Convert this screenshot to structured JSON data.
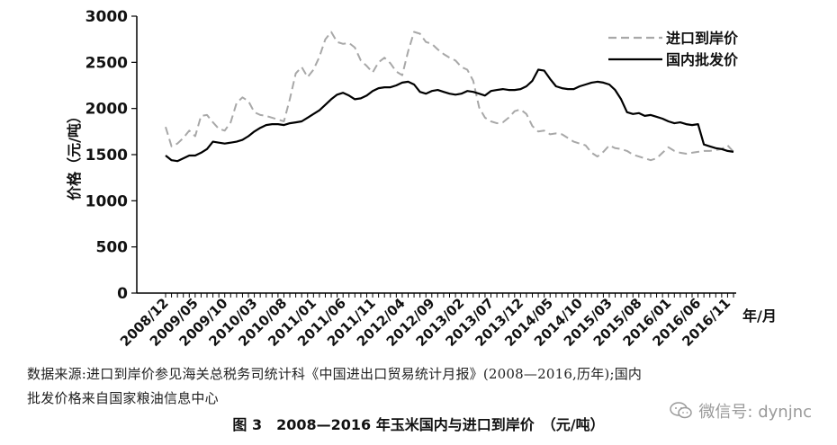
{
  "chart_data": {
    "type": "line",
    "x": [
      "2008/12",
      "2009/01",
      "2009/02",
      "2009/03",
      "2009/04",
      "2009/05",
      "2009/06",
      "2009/07",
      "2009/08",
      "2009/09",
      "2009/10",
      "2009/11",
      "2009/12",
      "2010/01",
      "2010/02",
      "2010/03",
      "2010/04",
      "2010/05",
      "2010/06",
      "2010/07",
      "2010/08",
      "2010/09",
      "2010/10",
      "2010/11",
      "2010/12",
      "2011/01",
      "2011/02",
      "2011/03",
      "2011/04",
      "2011/05",
      "2011/06",
      "2011/07",
      "2011/08",
      "2011/09",
      "2011/10",
      "2011/11",
      "2011/12",
      "2012/01",
      "2012/02",
      "2012/03",
      "2012/04",
      "2012/05",
      "2012/06",
      "2012/07",
      "2012/08",
      "2012/09",
      "2012/10",
      "2012/11",
      "2012/12",
      "2013/01",
      "2013/02",
      "2013/03",
      "2013/04",
      "2013/05",
      "2013/06",
      "2013/07",
      "2013/08",
      "2013/09",
      "2013/10",
      "2013/11",
      "2013/12",
      "2014/01",
      "2014/02",
      "2014/03",
      "2014/04",
      "2014/05",
      "2014/06",
      "2014/07",
      "2014/08",
      "2014/09",
      "2014/10",
      "2014/11",
      "2014/12",
      "2015/01",
      "2015/02",
      "2015/03",
      "2015/04",
      "2015/05",
      "2015/06",
      "2015/07",
      "2015/08",
      "2015/09",
      "2015/10",
      "2015/11",
      "2015/12",
      "2016/01",
      "2016/02",
      "2016/03",
      "2016/04",
      "2016/05",
      "2016/06",
      "2016/07",
      "2016/08",
      "2016/09",
      "2016/10",
      "2016/11",
      "2016/12"
    ],
    "series": [
      {
        "name": "进口到岸价",
        "style": "dashed",
        "color": "#a8a8a8",
        "values": [
          1800,
          1590,
          1620,
          1680,
          1760,
          1700,
          1920,
          1930,
          1850,
          1780,
          1760,
          1850,
          2060,
          2120,
          2080,
          1960,
          1930,
          1920,
          1900,
          1880,
          1860,
          2100,
          2380,
          2450,
          2340,
          2420,
          2560,
          2750,
          2830,
          2720,
          2700,
          2710,
          2660,
          2520,
          2460,
          2390,
          2500,
          2550,
          2490,
          2400,
          2360,
          2620,
          2830,
          2810,
          2720,
          2700,
          2640,
          2590,
          2550,
          2520,
          2450,
          2420,
          2300,
          2010,
          1900,
          1860,
          1840,
          1850,
          1900,
          1970,
          1990,
          1940,
          1810,
          1750,
          1760,
          1720,
          1730,
          1720,
          1680,
          1640,
          1620,
          1600,
          1520,
          1480,
          1530,
          1600,
          1570,
          1560,
          1540,
          1500,
          1480,
          1460,
          1440,
          1460,
          1520,
          1580,
          1540,
          1520,
          1510,
          1520,
          1530,
          1540,
          1540,
          1550,
          1560,
          1600,
          1530
        ],
        "note": "series drawn approximately over its visible course"
      },
      {
        "name": "国内批发价",
        "style": "solid",
        "color": "#000000",
        "values": [
          1490,
          1440,
          1430,
          1460,
          1490,
          1490,
          1520,
          1560,
          1640,
          1630,
          1620,
          1630,
          1640,
          1660,
          1700,
          1750,
          1790,
          1820,
          1830,
          1830,
          1820,
          1840,
          1850,
          1860,
          1900,
          1940,
          1980,
          2040,
          2100,
          2150,
          2170,
          2140,
          2100,
          2110,
          2140,
          2190,
          2220,
          2230,
          2230,
          2250,
          2280,
          2290,
          2260,
          2180,
          2160,
          2190,
          2200,
          2180,
          2160,
          2150,
          2160,
          2190,
          2180,
          2160,
          2140,
          2190,
          2200,
          2210,
          2200,
          2200,
          2210,
          2240,
          2300,
          2420,
          2410,
          2320,
          2240,
          2220,
          2210,
          2210,
          2240,
          2260,
          2280,
          2290,
          2280,
          2260,
          2200,
          2100,
          1960,
          1940,
          1950,
          1920,
          1930,
          1910,
          1890,
          1860,
          1840,
          1850,
          1830,
          1820,
          1830,
          1610,
          1590,
          1570,
          1560,
          1540,
          1530
        ]
      }
    ],
    "ylabel": "价格（元/吨）",
    "xlabel": "年/月",
    "ylim": [
      0,
      3000
    ],
    "yticks": [
      0,
      500,
      1000,
      1500,
      2000,
      2500,
      3000
    ],
    "xtick_labels": [
      "2008/12",
      "2009/05",
      "2009/10",
      "2010/03",
      "2010/08",
      "2011/01",
      "2011/06",
      "2011/11",
      "2012/04",
      "2012/09",
      "2013/02",
      "2013/07",
      "2013/12",
      "2014/05",
      "2014/10",
      "2015/03",
      "2015/08",
      "2016/01",
      "2016/06",
      "2016/11"
    ],
    "legend": {
      "placement": "top-right",
      "entries": [
        "进口到岸价",
        "国内批发价"
      ]
    },
    "grid": false
  },
  "notes": {
    "line1": "数据来源:进口到岸价参见海关总税务司统计科《中国进出口贸易统计月报》(2008—2016,历年);国内",
    "line2": "批发价格来自国家粮油信息中心"
  },
  "caption": "图 3　2008—2016 年玉米国内与进口到岸价　（元/吨）",
  "watermark": "微信号: dynjnc"
}
